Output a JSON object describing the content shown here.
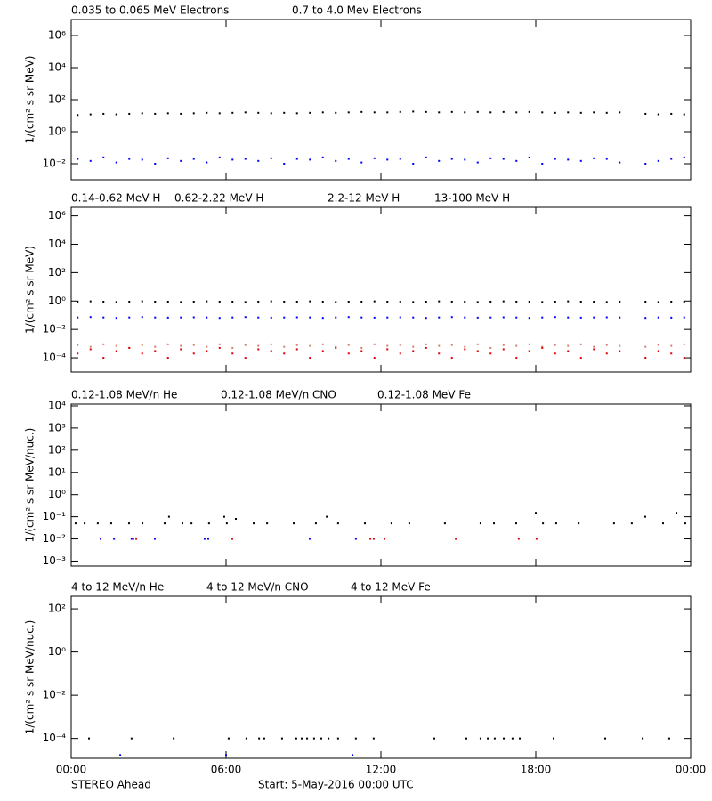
{
  "chart_data": [
    {
      "type": "scatter",
      "y_label": "1/(cm² s sr MeV)",
      "log_y": true,
      "xlim": [
        0,
        24
      ],
      "ylim": [
        0.001,
        10000000
      ],
      "yticks": [
        {
          "value": 1000000,
          "label": "10⁶"
        },
        {
          "value": 10000,
          "label": "10⁴"
        },
        {
          "value": 100,
          "label": "10²"
        },
        {
          "value": 1,
          "label": "10⁰"
        },
        {
          "value": 0.01,
          "label": "10⁻²"
        }
      ],
      "x": [
        0.25,
        0.75,
        1.25,
        1.75,
        2.25,
        2.75,
        3.25,
        3.75,
        4.25,
        4.75,
        5.25,
        5.75,
        6.25,
        6.75,
        7.25,
        7.75,
        8.25,
        8.75,
        9.25,
        9.75,
        10.25,
        10.75,
        11.25,
        11.75,
        12.25,
        12.75,
        13.25,
        13.75,
        14.25,
        14.75,
        15.25,
        15.75,
        16.25,
        16.75,
        17.25,
        17.75,
        18.25,
        18.75,
        19.25,
        19.75,
        20.25,
        20.75,
        21.25,
        21.75,
        22.25,
        22.75,
        23.25,
        23.75
      ],
      "series": [
        {
          "name": "0.035 to 0.065 MeV Electrons",
          "color": "#000000",
          "values": [
            11,
            12,
            13,
            12,
            13,
            14,
            13,
            14,
            13,
            14,
            15,
            14,
            15,
            16,
            15,
            14,
            15,
            14,
            15,
            16,
            15,
            16,
            17,
            16,
            16,
            17,
            18,
            17,
            16,
            17,
            16,
            17,
            16,
            17,
            16,
            17,
            16,
            15,
            16,
            15,
            16,
            15,
            16,
            null,
            13,
            12,
            13,
            12
          ]
        },
        {
          "name": "0.7 to 4.0 Mev Electrons",
          "color": "#0000ff",
          "values": [
            0.02,
            0.015,
            0.025,
            0.012,
            0.02,
            0.018,
            0.01,
            0.022,
            0.015,
            0.02,
            0.012,
            0.025,
            0.018,
            0.02,
            0.015,
            0.022,
            0.01,
            0.02,
            0.018,
            0.025,
            0.015,
            0.02,
            0.012,
            0.022,
            0.018,
            0.02,
            0.01,
            0.025,
            0.015,
            0.02,
            0.018,
            0.012,
            0.022,
            0.02,
            0.015,
            0.025,
            0.01,
            0.02,
            0.018,
            0.015,
            0.022,
            0.02,
            0.012,
            null,
            0.01,
            0.015,
            0.02,
            0.025
          ]
        }
      ]
    },
    {
      "type": "scatter",
      "y_label": "1/(cm² s sr MeV)",
      "log_y": true,
      "xlim": [
        0,
        24
      ],
      "ylim": [
        1e-05,
        4000000
      ],
      "yticks": [
        {
          "value": 1000000,
          "label": "10⁶"
        },
        {
          "value": 10000,
          "label": "10⁴"
        },
        {
          "value": 100,
          "label": "10²"
        },
        {
          "value": 1,
          "label": "10⁰"
        },
        {
          "value": 0.01,
          "label": "10⁻²"
        },
        {
          "value": 0.0001,
          "label": "10⁻⁴"
        }
      ],
      "x": [
        0.25,
        0.75,
        1.25,
        1.75,
        2.25,
        2.75,
        3.25,
        3.75,
        4.25,
        4.75,
        5.25,
        5.75,
        6.25,
        6.75,
        7.25,
        7.75,
        8.25,
        8.75,
        9.25,
        9.75,
        10.25,
        10.75,
        11.25,
        11.75,
        12.25,
        12.75,
        13.25,
        13.75,
        14.25,
        14.75,
        15.25,
        15.75,
        16.25,
        16.75,
        17.25,
        17.75,
        18.25,
        18.75,
        19.25,
        19.75,
        20.25,
        20.75,
        21.25,
        21.75,
        22.25,
        22.75,
        23.25,
        23.75
      ],
      "series": [
        {
          "name": "0.14-0.62 MeV H",
          "color": "#000000",
          "values": [
            0.9,
            0.95,
            0.9,
            0.85,
            0.9,
            0.95,
            0.9,
            0.9,
            0.85,
            0.9,
            0.95,
            0.9,
            0.9,
            0.85,
            0.9,
            0.95,
            0.9,
            0.9,
            0.95,
            0.9,
            0.85,
            0.9,
            0.9,
            0.95,
            0.9,
            0.9,
            0.85,
            0.9,
            0.95,
            0.9,
            0.9,
            0.85,
            0.9,
            0.95,
            0.9,
            0.9,
            0.85,
            0.9,
            0.95,
            0.9,
            0.9,
            0.85,
            0.9,
            null,
            0.9,
            0.85,
            0.9,
            0.9
          ]
        },
        {
          "name": "0.62-2.22 MeV H",
          "color": "#0000ff",
          "values": [
            0.07,
            0.075,
            0.07,
            0.065,
            0.07,
            0.075,
            0.07,
            0.068,
            0.07,
            0.072,
            0.07,
            0.065,
            0.07,
            0.075,
            0.07,
            0.068,
            0.07,
            0.072,
            0.07,
            0.065,
            0.07,
            0.075,
            0.07,
            0.068,
            0.07,
            0.072,
            0.07,
            0.065,
            0.07,
            0.075,
            0.07,
            0.068,
            0.07,
            0.072,
            0.07,
            0.065,
            0.07,
            0.075,
            0.07,
            0.068,
            0.07,
            0.072,
            0.07,
            null,
            0.065,
            0.07,
            0.068,
            0.07
          ]
        },
        {
          "name": "2.2-12 MeV H",
          "color": "#d08070",
          "values": [
            0.0008,
            0.0006,
            0.0009,
            0.0007,
            0.0005,
            0.0008,
            0.0006,
            0.0009,
            0.0007,
            0.0008,
            0.0006,
            0.0009,
            0.0005,
            0.0008,
            0.0007,
            0.0009,
            0.0006,
            0.0008,
            0.0007,
            0.0009,
            0.0006,
            0.0008,
            0.0005,
            0.0009,
            0.0007,
            0.0008,
            0.0006,
            0.0009,
            0.0007,
            0.0008,
            0.0006,
            0.0009,
            0.0005,
            0.0008,
            0.0007,
            0.0009,
            0.0006,
            0.0008,
            0.0007,
            0.0009,
            0.0006,
            0.0008,
            0.0007,
            null,
            0.0006,
            0.0008,
            0.0007,
            0.0009
          ]
        },
        {
          "name": "13-100 MeV H",
          "color": "#e00000",
          "values": [
            0.0002,
            0.0004,
            0.0001,
            0.0003,
            0.0005,
            0.0002,
            0.0003,
            0.0001,
            0.0004,
            0.0002,
            0.0003,
            0.0005,
            0.0002,
            0.0001,
            0.0004,
            0.0003,
            0.0002,
            0.0004,
            0.0001,
            0.0003,
            0.0005,
            0.0002,
            0.0003,
            0.0001,
            0.0004,
            0.0002,
            0.0003,
            0.0005,
            0.0002,
            0.0001,
            0.0004,
            0.0003,
            0.0002,
            0.0004,
            0.0001,
            0.0003,
            0.0005,
            0.0002,
            0.0003,
            0.0001,
            0.0004,
            0.0002,
            0.0003,
            null,
            0.0001,
            0.0003,
            0.0002,
            0.0001
          ]
        }
      ]
    },
    {
      "type": "scatter",
      "y_label": "1/(cm² s sr MeV/nuc.)",
      "log_y": true,
      "xlim": [
        0,
        24
      ],
      "ylim": [
        0.0006,
        12000
      ],
      "yticks": [
        {
          "value": 10000,
          "label": "10⁴"
        },
        {
          "value": 1000,
          "label": "10³"
        },
        {
          "value": 100,
          "label": "10²"
        },
        {
          "value": 10,
          "label": "10¹"
        },
        {
          "value": 1,
          "label": "10⁰"
        },
        {
          "value": 0.1,
          "label": "10⁻¹"
        },
        {
          "value": 0.01,
          "label": "10⁻²"
        },
        {
          "value": 0.001,
          "label": "10⁻³"
        }
      ],
      "series": [
        {
          "name": "0.12-1.08 MeV/n He",
          "color": "#000000",
          "x": [
            0.17,
            0.52,
            1.03,
            1.55,
            2.24,
            2.76,
            3.62,
            3.79,
            4.31,
            4.66,
            5.34,
            5.93,
            6.03,
            6.38,
            7.07,
            7.59,
            8.62,
            9.48,
            9.9,
            10.34,
            11.38,
            12.41,
            13.1,
            14.48,
            15.86,
            16.38,
            17.24,
            18.0,
            18.28,
            18.79,
            19.66,
            21.03,
            21.72,
            22.24,
            22.93,
            23.45,
            23.79
          ],
          "values": [
            0.05,
            0.05,
            0.05,
            0.05,
            0.05,
            0.05,
            0.05,
            0.1,
            0.05,
            0.05,
            0.05,
            0.1,
            0.05,
            0.08,
            0.05,
            0.05,
            0.05,
            0.05,
            0.1,
            0.05,
            0.05,
            0.05,
            0.05,
            0.05,
            0.05,
            0.05,
            0.05,
            0.15,
            0.05,
            0.05,
            0.05,
            0.05,
            0.05,
            0.1,
            0.05,
            0.15,
            0.05
          ]
        },
        {
          "name": "0.12-1.08 MeV/n CNO",
          "color": "#0000ff",
          "x": [
            1.14,
            1.66,
            2.34,
            3.24,
            5.17,
            5.31,
            9.24,
            11.03
          ],
          "values": [
            0.01,
            0.01,
            0.01,
            0.01,
            0.01,
            0.01,
            0.01,
            0.01
          ]
        },
        {
          "name": "0.12-1.08 MeV Fe",
          "color": "#e00000",
          "x": [
            2.41,
            2.52,
            6.24,
            11.59,
            11.72,
            12.14,
            14.9,
            17.34,
            18.03
          ],
          "values": [
            0.01,
            0.01,
            0.01,
            0.01,
            0.01,
            0.01,
            0.01,
            0.01,
            0.01
          ]
        }
      ]
    },
    {
      "type": "scatter",
      "y_label": "1/(cm² s sr MeV/nuc.)",
      "log_y": true,
      "xlim": [
        0,
        24
      ],
      "ylim": [
        1.2e-05,
        380
      ],
      "yticks": [
        {
          "value": 100,
          "label": "10²"
        },
        {
          "value": 1,
          "label": "10⁰"
        },
        {
          "value": 0.01,
          "label": "10⁻²"
        },
        {
          "value": 0.0001,
          "label": "10⁻⁴"
        }
      ],
      "xticks": [
        {
          "value": 0,
          "label": "00:00"
        },
        {
          "value": 6,
          "label": "06:00"
        },
        {
          "value": 12,
          "label": "12:00"
        },
        {
          "value": 18,
          "label": "18:00"
        },
        {
          "value": 24,
          "label": "00:00"
        }
      ],
      "series": [
        {
          "name": "4 to 12 MeV/n He",
          "color": "#000000",
          "x": [
            0.69,
            2.34,
            3.97,
            6.1,
            6.79,
            7.28,
            7.48,
            8.17,
            8.72,
            8.93,
            9.14,
            9.41,
            9.69,
            9.97,
            10.34,
            11.03,
            11.72,
            14.07,
            15.31,
            15.86,
            16.14,
            16.41,
            16.76,
            17.1,
            17.38,
            18.69,
            20.69,
            22.14,
            23.17
          ],
          "values": [
            0.0001,
            0.0001,
            0.0001,
            0.0001,
            0.0001,
            0.0001,
            0.0001,
            0.0001,
            0.0001,
            0.0001,
            0.0001,
            0.0001,
            0.0001,
            0.0001,
            0.0001,
            0.0001,
            0.0001,
            0.0001,
            0.0001,
            0.0001,
            0.0001,
            0.0001,
            0.0001,
            0.0001,
            0.0001,
            0.0001,
            0.0001,
            0.0001,
            0.0001
          ]
        },
        {
          "name": "4 to 12 MeV/n CNO",
          "color": "#0000ff",
          "x": [
            1.9,
            6.0,
            10.9
          ],
          "values": [
            1.7e-05,
            1.7e-05,
            1.7e-05
          ]
        },
        {
          "name": "4 to 12 MeV Fe",
          "color": "#e00000",
          "x": [],
          "values": []
        }
      ]
    }
  ],
  "footer": {
    "spacecraft": "STEREO Ahead",
    "start": "Start:  5-May-2016 00:00 UTC"
  }
}
